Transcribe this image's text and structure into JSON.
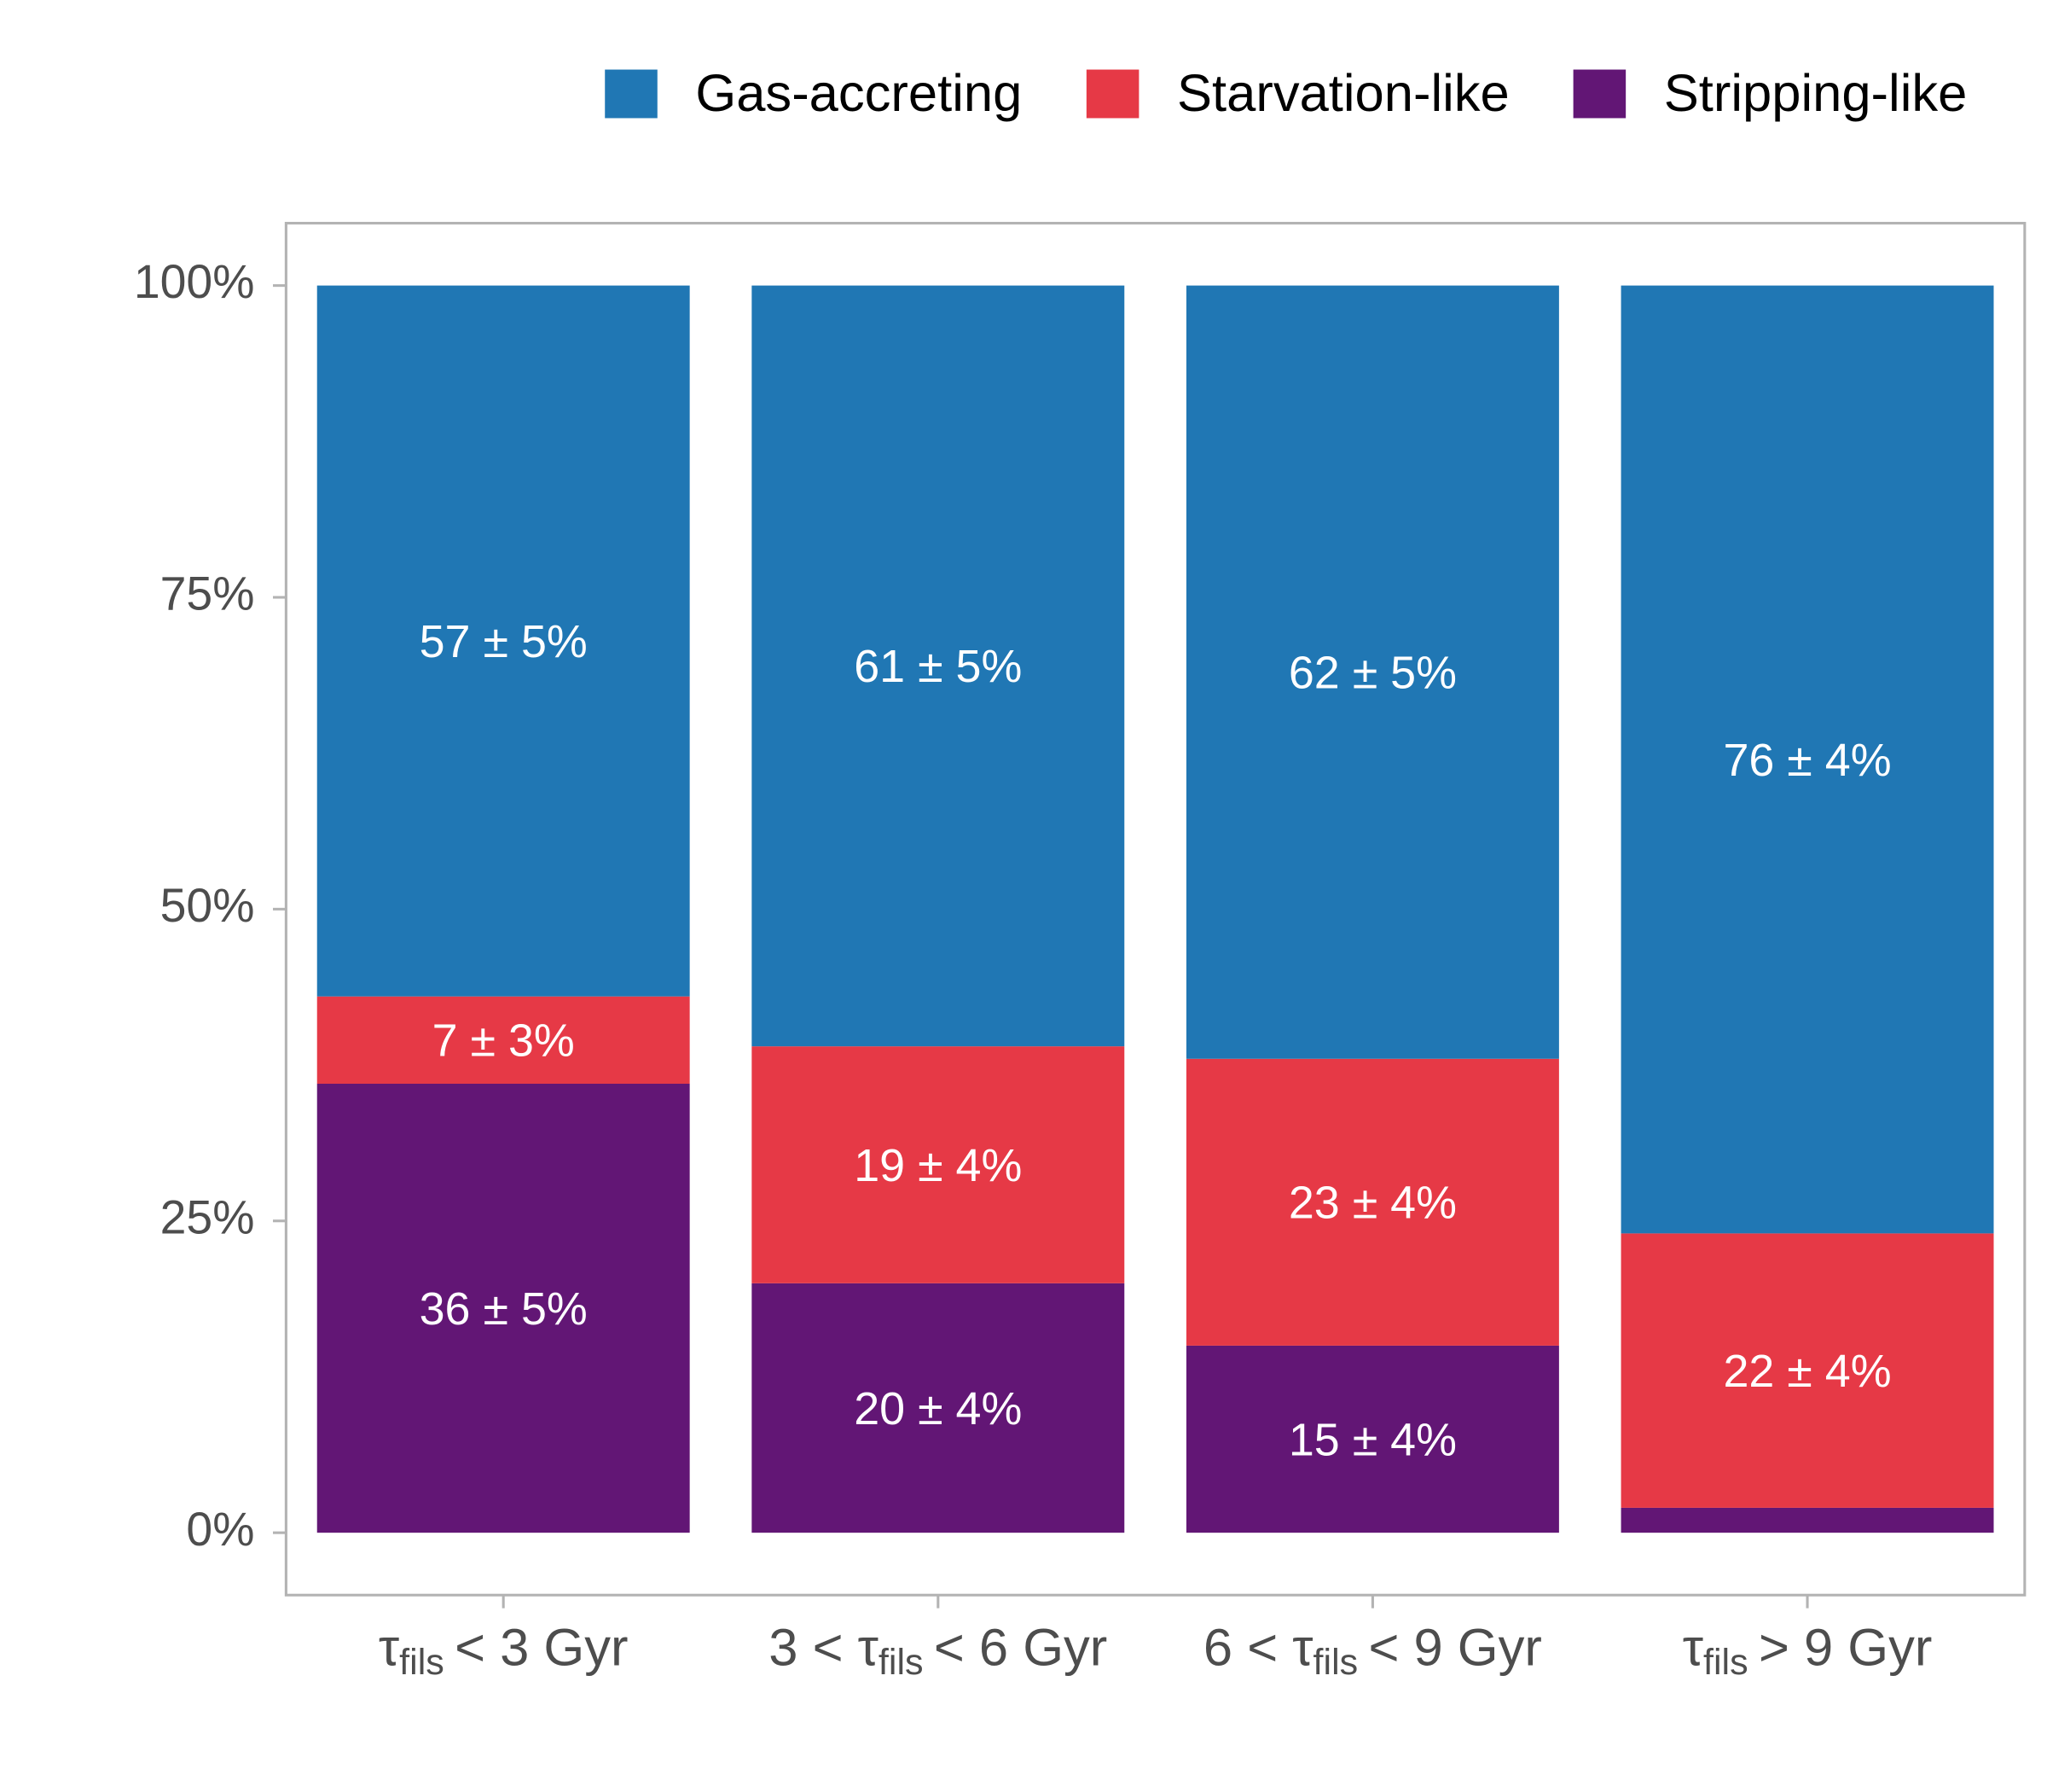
{
  "chart_data": {
    "type": "stacked_bar",
    "categories": [
      [
        "τ",
        "fils",
        "< 3 Gyr"
      ],
      [
        "3 < τ",
        "fils",
        "< 6 Gyr"
      ],
      [
        "6 < τ",
        "fils",
        "< 9 Gyr"
      ],
      [
        "τ",
        "fils",
        "> 9 Gyr"
      ]
    ],
    "series": [
      {
        "name": "Gas-accreting",
        "color": "#2077b4",
        "values": [
          57,
          61,
          62,
          76
        ],
        "value_labels": [
          "57 ± 5%",
          "61 ± 5%",
          "62 ± 5%",
          "76 ± 4%"
        ]
      },
      {
        "name": "Starvation-like",
        "color": "#e63946",
        "values": [
          7,
          19,
          23,
          22
        ],
        "value_labels": [
          "7 ± 3%",
          "19 ± 4%",
          "23 ± 4%",
          "22 ± 4%"
        ]
      },
      {
        "name": "Stripping-like",
        "color": "#621675",
        "values": [
          36,
          20,
          15,
          2
        ],
        "value_labels": [
          "36 ± 5%",
          "20 ± 4%",
          "15 ± 4%",
          null
        ]
      }
    ],
    "ylim": [
      -5,
      105
    ],
    "yticks": [
      {
        "value": 0,
        "label": "0%"
      },
      {
        "value": 25,
        "label": "25%"
      },
      {
        "value": 50,
        "label": "50%"
      },
      {
        "value": 75,
        "label": "75%"
      },
      {
        "value": 100,
        "label": "100%"
      }
    ],
    "legend": "top"
  }
}
